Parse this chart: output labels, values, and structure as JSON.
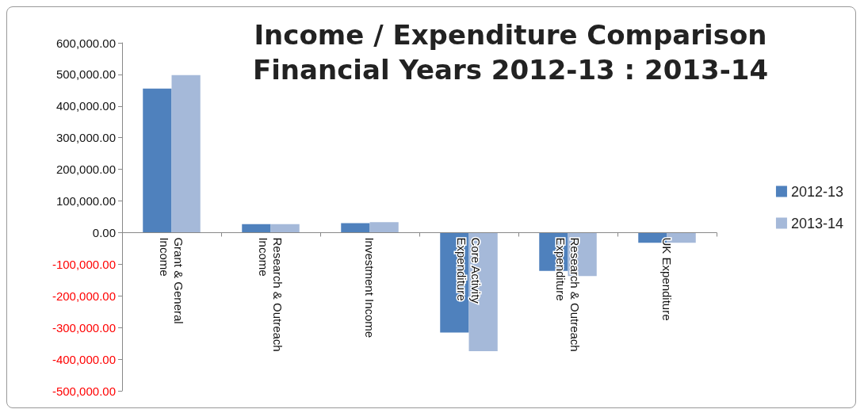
{
  "chart_data": {
    "type": "bar",
    "title": "Income / Expenditure Comparison\nFinancial Years 2012-13 : 2013-14",
    "categories": [
      "Grant & General\nIncome",
      "Research & Outreach\nIncome",
      "Investment Income",
      "Core Activity\nExpenditure",
      "Research & Outreach\nExpenditure",
      "UK Expenditure"
    ],
    "series": [
      {
        "name": "2012-13",
        "color": "#4f81bd",
        "values": [
          455000,
          27000,
          30000,
          -316000,
          -121000,
          -32000
        ]
      },
      {
        "name": "2013-14",
        "color": "#a5b9d9",
        "values": [
          498000,
          27000,
          33000,
          -375000,
          -137000,
          -32000
        ]
      }
    ],
    "ylim": [
      -500000,
      600000
    ],
    "yticks": [
      {
        "value": -500000,
        "label": "-500,000.00"
      },
      {
        "value": -400000,
        "label": "-400,000.00"
      },
      {
        "value": -300000,
        "label": "-300,000.00"
      },
      {
        "value": -200000,
        "label": "-200,000.00"
      },
      {
        "value": -100000,
        "label": "-100,000.00"
      },
      {
        "value": 0,
        "label": "0.00"
      },
      {
        "value": 100000,
        "label": "100,000.00"
      },
      {
        "value": 200000,
        "label": "200,000.00"
      },
      {
        "value": 300000,
        "label": "300,000.00"
      },
      {
        "value": 400000,
        "label": "400,000.00"
      },
      {
        "value": 500000,
        "label": "500,000.00"
      },
      {
        "value": 600000,
        "label": "600,000.00"
      }
    ],
    "legend": "right"
  }
}
